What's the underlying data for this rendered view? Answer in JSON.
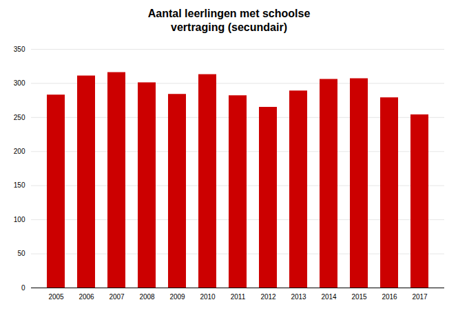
{
  "chart_data": {
    "type": "bar",
    "title": "Aantal leerlingen met schoolse\nvertraging (secundair)",
    "categories": [
      "2005",
      "2006",
      "2007",
      "2008",
      "2009",
      "2010",
      "2011",
      "2012",
      "2013",
      "2014",
      "2015",
      "2016",
      "2017"
    ],
    "values": [
      283,
      311,
      316,
      301,
      284,
      313,
      282,
      265,
      289,
      306,
      307,
      279,
      254
    ],
    "color": "#CC0000",
    "ylim": [
      0,
      350
    ],
    "yticks": [
      0,
      50,
      100,
      150,
      200,
      250,
      300,
      350
    ],
    "grid": true
  }
}
